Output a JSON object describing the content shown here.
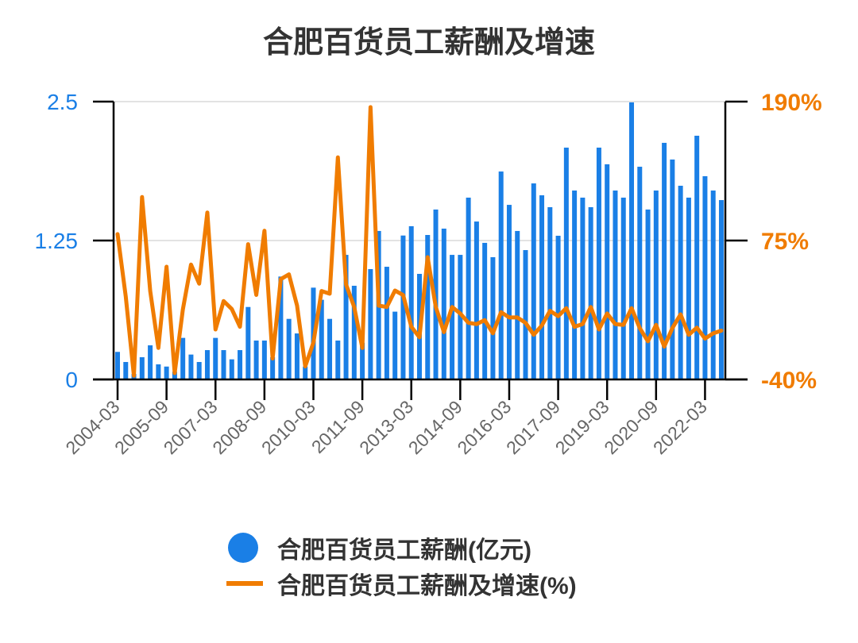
{
  "chart_data": {
    "type": "bar+line",
    "title": "合肥百货员工薪酬及增速",
    "x": [
      "2004-03",
      "2004-06",
      "2004-09",
      "2004-12",
      "2005-03",
      "2005-06",
      "2005-09",
      "2005-12",
      "2006-03",
      "2006-06",
      "2006-09",
      "2006-12",
      "2007-03",
      "2007-06",
      "2007-09",
      "2007-12",
      "2008-03",
      "2008-06",
      "2008-09",
      "2008-12",
      "2009-03",
      "2009-06",
      "2009-09",
      "2009-12",
      "2010-03",
      "2010-06",
      "2010-09",
      "2010-12",
      "2011-03",
      "2011-06",
      "2011-09",
      "2011-12",
      "2012-03",
      "2012-06",
      "2012-09",
      "2012-12",
      "2013-03",
      "2013-06",
      "2013-09",
      "2013-12",
      "2014-03",
      "2014-06",
      "2014-09",
      "2014-12",
      "2015-03",
      "2015-06",
      "2015-09",
      "2015-12",
      "2016-03",
      "2016-06",
      "2016-09",
      "2016-12",
      "2017-03",
      "2017-06",
      "2017-09",
      "2017-12",
      "2018-03",
      "2018-06",
      "2018-09",
      "2018-12",
      "2019-03",
      "2019-06",
      "2019-09",
      "2019-12",
      "2020-03",
      "2020-06",
      "2020-09",
      "2020-12",
      "2021-03",
      "2021-06",
      "2021-09",
      "2021-12",
      "2022-03",
      "2022-06",
      "2022-09"
    ],
    "x_tick_labels": [
      "2004-03",
      "2005-09",
      "2007-03",
      "2008-09",
      "2010-03",
      "2011-09",
      "2013-03",
      "2014-09",
      "2016-03",
      "2017-09",
      "2019-03",
      "2020-09",
      "2022-03"
    ],
    "series": [
      {
        "name": "合肥百货员工薪酬(亿元)",
        "type": "bar",
        "axis": "left",
        "color": "#1a7fe6",
        "values": [
          0.248,
          0.157,
          0.05,
          0.2,
          0.307,
          0.136,
          0.116,
          0.07,
          0.374,
          0.224,
          0.157,
          0.264,
          0.374,
          0.264,
          0.181,
          0.264,
          0.652,
          0.35,
          0.35,
          0.2,
          0.926,
          0.545,
          0.414,
          0.116,
          0.826,
          0.717,
          0.545,
          0.35,
          1.121,
          0.843,
          0.33,
          0.993,
          1.336,
          1.014,
          0.61,
          1.295,
          1.379,
          0.95,
          1.3,
          1.529,
          1.357,
          1.121,
          1.121,
          1.636,
          1.421,
          1.229,
          1.1,
          1.871,
          1.571,
          1.336,
          1.164,
          1.764,
          1.657,
          1.55,
          1.293,
          2.086,
          1.7,
          1.636,
          1.55,
          2.086,
          1.936,
          1.7,
          1.636,
          2.493,
          1.914,
          1.529,
          1.7,
          2.129,
          1.979,
          1.743,
          1.636,
          2.193,
          1.829,
          1.7,
          1.614
        ]
      },
      {
        "name": "合肥百货员工薪酬及增速(%)",
        "type": "line",
        "axis": "right",
        "color": "#f07c00",
        "values": [
          80.3,
          28.8,
          -36.9,
          111,
          33.2,
          -13.9,
          53.3,
          -34.7,
          17.9,
          55.1,
          39.3,
          98.2,
          1.4,
          24.9,
          18.3,
          3.6,
          72,
          30,
          83.1,
          -22.7,
          43,
          47,
          21.1,
          -29.2,
          -9.5,
          33.2,
          31,
          143.8,
          38.7,
          20,
          -13.9,
          185.4,
          21.1,
          20,
          33.6,
          29.9,
          3.6,
          -5.1,
          61.2,
          20,
          -0.8,
          20,
          14.6,
          6.9,
          5.8,
          9.1,
          -1.8,
          15.7,
          11.3,
          11.3,
          6.9,
          -3,
          4.7,
          16.8,
          12.4,
          19,
          3.6,
          5.8,
          20,
          1.4,
          14.6,
          5.8,
          5.2,
          19,
          2.5,
          -8.4,
          5.2,
          -12.8,
          2.5,
          13.9,
          -3,
          2.9,
          -6.2,
          -1.8,
          0.4
        ]
      }
    ],
    "y_left": {
      "range": [
        0,
        2.5
      ],
      "ticks": [
        "0",
        "1.25",
        "2.5"
      ],
      "color": "#1a7fe6"
    },
    "y_right": {
      "range": [
        -40,
        190
      ],
      "ticks": [
        "-40%",
        "75%",
        "190%"
      ],
      "color": "#f07c00"
    },
    "grid": true,
    "legend": "bottom"
  }
}
